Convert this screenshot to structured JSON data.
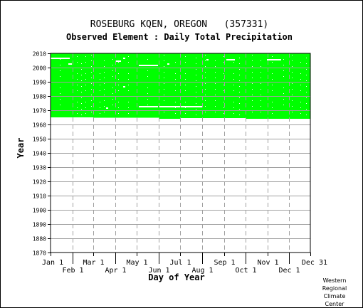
{
  "chart_data": {
    "type": "heatmap",
    "title": "ROSEBURG KQEN, OREGON   (357331)",
    "subtitle": "Observed Element : Daily Total Precipitation",
    "xlabel": "Day of Year",
    "ylabel": "Year",
    "ylim": [
      1870,
      2010
    ],
    "xlim": [
      1,
      366
    ],
    "y_ticks": [
      1870,
      1880,
      1890,
      1900,
      1910,
      1920,
      1930,
      1940,
      1950,
      1960,
      1970,
      1980,
      1990,
      2000,
      2010
    ],
    "x_ticks": [
      {
        "label": "Jan 1",
        "day": 1,
        "row": 1
      },
      {
        "label": "Feb 1",
        "day": 32,
        "row": 2
      },
      {
        "label": "Mar 1",
        "day": 61,
        "row": 1
      },
      {
        "label": "Apr 1",
        "day": 92,
        "row": 2
      },
      {
        "label": "May 1",
        "day": 122,
        "row": 1
      },
      {
        "label": "Jun 1",
        "day": 153,
        "row": 2
      },
      {
        "label": "Jul 1",
        "day": 183,
        "row": 1
      },
      {
        "label": "Aug 1",
        "day": 214,
        "row": 2
      },
      {
        "label": "Sep 1",
        "day": 245,
        "row": 1
      },
      {
        "label": "Oct 1",
        "day": 275,
        "row": 2
      },
      {
        "label": "Nov 1",
        "day": 306,
        "row": 1
      },
      {
        "label": "Dec 1",
        "day": 336,
        "row": 2
      },
      {
        "label": "Dec 31",
        "day": 366,
        "row": 1
      }
    ],
    "grid": true,
    "data_color": "#00ff00",
    "observed_region": {
      "year_end": 2009.9,
      "start_year_segments": [
        {
          "day_start": 1,
          "day_end": 61,
          "year": 1965.1
        },
        {
          "day_start": 61,
          "day_end": 153,
          "year": 1964.7
        },
        {
          "day_start": 153,
          "day_end": 183,
          "year": 1963.9
        },
        {
          "day_start": 183,
          "day_end": 275,
          "year": 1964.5
        },
        {
          "day_start": 275,
          "day_end": 366,
          "year": 1964.1
        }
      ]
    },
    "missing_segments": [
      {
        "day_start": 1,
        "day_end": 28,
        "year": 2006.5
      },
      {
        "day_start": 26,
        "day_end": 31,
        "year": 2002.5
      },
      {
        "day_start": 125,
        "day_end": 152,
        "year": 2001.5
      },
      {
        "day_start": 153,
        "day_end": 215,
        "year": 1972.5
      },
      {
        "day_start": 125,
        "day_end": 152,
        "year": 1972.5
      },
      {
        "day_start": 248,
        "day_end": 260,
        "year": 2005.5
      },
      {
        "day_start": 305,
        "day_end": 325,
        "year": 2005.5
      },
      {
        "day_start": 165,
        "day_end": 168,
        "year": 2002.5
      },
      {
        "day_start": 92,
        "day_end": 100,
        "year": 2004.5
      },
      {
        "day_start": 103,
        "day_end": 106,
        "year": 2006.5
      },
      {
        "day_start": 103,
        "day_end": 106,
        "year": 1986.5
      },
      {
        "day_start": 79,
        "day_end": 82,
        "year": 1971.5
      },
      {
        "day_start": 220,
        "day_end": 223,
        "year": 2005.5
      }
    ],
    "missing_days": [
      {
        "day": 14,
        "year_start": 1966,
        "year_end": 2006
      },
      {
        "day": 38,
        "year_start": 1966,
        "year_end": 2008
      },
      {
        "day": 44,
        "year_start": 1966,
        "year_end": 2003
      },
      {
        "day": 50,
        "year_start": 1966,
        "year_end": 2008
      },
      {
        "day": 58,
        "year_start": 1966,
        "year_end": 2009
      },
      {
        "day": 70,
        "year_start": 1966,
        "year_end": 2000
      },
      {
        "day": 76,
        "year_start": 1966,
        "year_end": 2005
      },
      {
        "day": 88,
        "year_start": 1966,
        "year_end": 2006
      },
      {
        "day": 96,
        "year_start": 1966,
        "year_end": 2004
      },
      {
        "day": 110,
        "year_start": 1966,
        "year_end": 2008
      },
      {
        "day": 137,
        "year_start": 1966,
        "year_end": 2006
      },
      {
        "day": 160,
        "year_start": 1966,
        "year_end": 2009
      },
      {
        "day": 176,
        "year_start": 1966,
        "year_end": 2004
      },
      {
        "day": 190,
        "year_start": 1966,
        "year_end": 2008
      },
      {
        "day": 205,
        "year_start": 1966,
        "year_end": 2007
      },
      {
        "day": 218,
        "year_start": 1966,
        "year_end": 2009
      },
      {
        "day": 232,
        "year_start": 1966,
        "year_end": 2005
      },
      {
        "day": 244,
        "year_start": 1966,
        "year_end": 2008
      },
      {
        "day": 258,
        "year_start": 1966,
        "year_end": 2004
      },
      {
        "day": 266,
        "year_start": 1966,
        "year_end": 2007
      },
      {
        "day": 284,
        "year_start": 1966,
        "year_end": 2009
      },
      {
        "day": 296,
        "year_start": 1966,
        "year_end": 2005
      },
      {
        "day": 312,
        "year_start": 1966,
        "year_end": 2008
      },
      {
        "day": 328,
        "year_start": 1966,
        "year_end": 2006
      },
      {
        "day": 340,
        "year_start": 1966,
        "year_end": 2009
      },
      {
        "day": 352,
        "year_start": 1966,
        "year_end": 2004
      },
      {
        "day": 360,
        "year_start": 1966,
        "year_end": 2007
      }
    ]
  },
  "credit": {
    "line1": "Western",
    "line2": "Regional",
    "line3": "Climate",
    "line4": "Center"
  }
}
